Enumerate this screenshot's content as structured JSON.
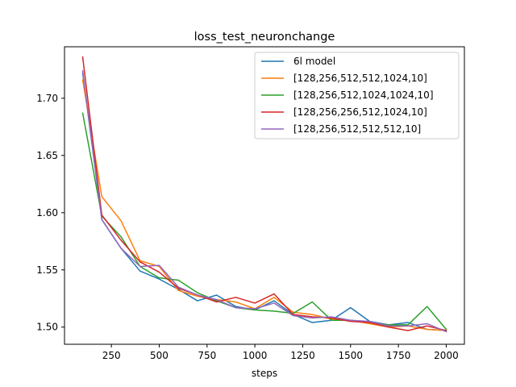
{
  "chart_data": {
    "type": "line",
    "title": "loss_test_neuronchange",
    "xlabel": "steps",
    "ylabel": "",
    "xlim": [
      5,
      2095
    ],
    "ylim": [
      1.485,
      1.745
    ],
    "xticks": [
      250,
      500,
      750,
      1000,
      1250,
      1500,
      1750,
      2000
    ],
    "xtick_labels": [
      "250",
      "500",
      "750",
      "1000",
      "1250",
      "1500",
      "1750",
      "2000"
    ],
    "yticks": [
      1.5,
      1.55,
      1.6,
      1.65,
      1.7
    ],
    "ytick_labels": [
      "1.50",
      "1.55",
      "1.60",
      "1.65",
      "1.70"
    ],
    "grid": false,
    "legend_position": "top-right",
    "x": [
      100,
      200,
      300,
      400,
      500,
      600,
      700,
      800,
      900,
      1000,
      1100,
      1200,
      1300,
      1400,
      1500,
      1600,
      1700,
      1800,
      1900,
      2000
    ],
    "series": [
      {
        "name": "6l model",
        "color": "#1f77b4",
        "values": [
          1.722,
          1.594,
          1.569,
          1.549,
          1.542,
          1.533,
          1.523,
          1.528,
          1.518,
          1.515,
          1.523,
          1.511,
          1.504,
          1.506,
          1.517,
          1.505,
          1.502,
          1.504,
          1.498,
          1.497
        ]
      },
      {
        "name": "[128,256,512,512,1024,10]",
        "color": "#ff7f0e",
        "values": [
          1.716,
          1.614,
          1.593,
          1.558,
          1.553,
          1.532,
          1.527,
          1.524,
          1.522,
          1.516,
          1.526,
          1.513,
          1.511,
          1.507,
          1.506,
          1.503,
          1.5,
          1.501,
          1.498,
          1.497
        ]
      },
      {
        "name": "[128,256,512,1024,1024,10]",
        "color": "#2ca02c",
        "values": [
          1.687,
          1.597,
          1.579,
          1.553,
          1.543,
          1.541,
          1.53,
          1.523,
          1.517,
          1.515,
          1.514,
          1.512,
          1.522,
          1.506,
          1.506,
          1.504,
          1.502,
          1.502,
          1.518,
          1.498
        ]
      },
      {
        "name": "[128,256,256,512,1024,10]",
        "color": "#d62728",
        "values": [
          1.736,
          1.598,
          1.576,
          1.557,
          1.548,
          1.534,
          1.528,
          1.522,
          1.526,
          1.521,
          1.529,
          1.511,
          1.509,
          1.508,
          1.505,
          1.504,
          1.5,
          1.497,
          1.501,
          1.497
        ]
      },
      {
        "name": "[128,256,512,512,512,10]",
        "color": "#9467bd",
        "values": [
          1.724,
          1.594,
          1.569,
          1.553,
          1.554,
          1.535,
          1.528,
          1.524,
          1.517,
          1.516,
          1.521,
          1.51,
          1.508,
          1.509,
          1.506,
          1.505,
          1.501,
          1.501,
          1.503,
          1.496
        ]
      }
    ]
  }
}
